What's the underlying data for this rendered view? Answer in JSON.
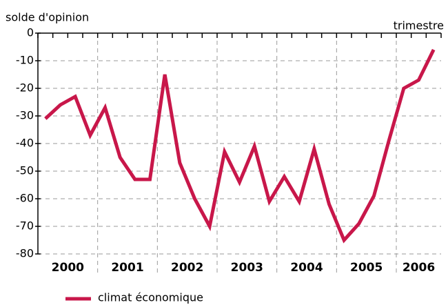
{
  "chart_data": {
    "type": "line",
    "y_label": "solde d'opinion",
    "x_label": "trimestre",
    "categories": [
      null,
      null,
      null,
      null,
      null,
      null,
      null,
      null,
      null,
      null,
      null,
      null,
      null,
      null,
      null,
      null,
      null,
      null,
      null,
      null,
      null,
      null,
      null,
      null,
      null,
      null,
      null
    ],
    "year_labels": [
      "2000",
      "2001",
      "2002",
      "2003",
      "2004",
      "2005",
      "2006"
    ],
    "series": [
      {
        "name": "climat économique",
        "color": "#c8174a",
        "values": [
          -31,
          -26,
          -23,
          -37,
          -27,
          -45,
          -53,
          -53,
          -15,
          -47,
          -60,
          -70,
          -43,
          -54,
          -41,
          -61,
          -52,
          -61,
          -42,
          -62,
          -75,
          -69,
          -59,
          -39,
          -20,
          -17,
          -6
        ]
      }
    ],
    "ylim": [
      -80,
      0
    ],
    "yticks": [
      0,
      -10,
      -20,
      -30,
      -40,
      -50,
      -60,
      -70,
      -80
    ],
    "grid": true
  }
}
